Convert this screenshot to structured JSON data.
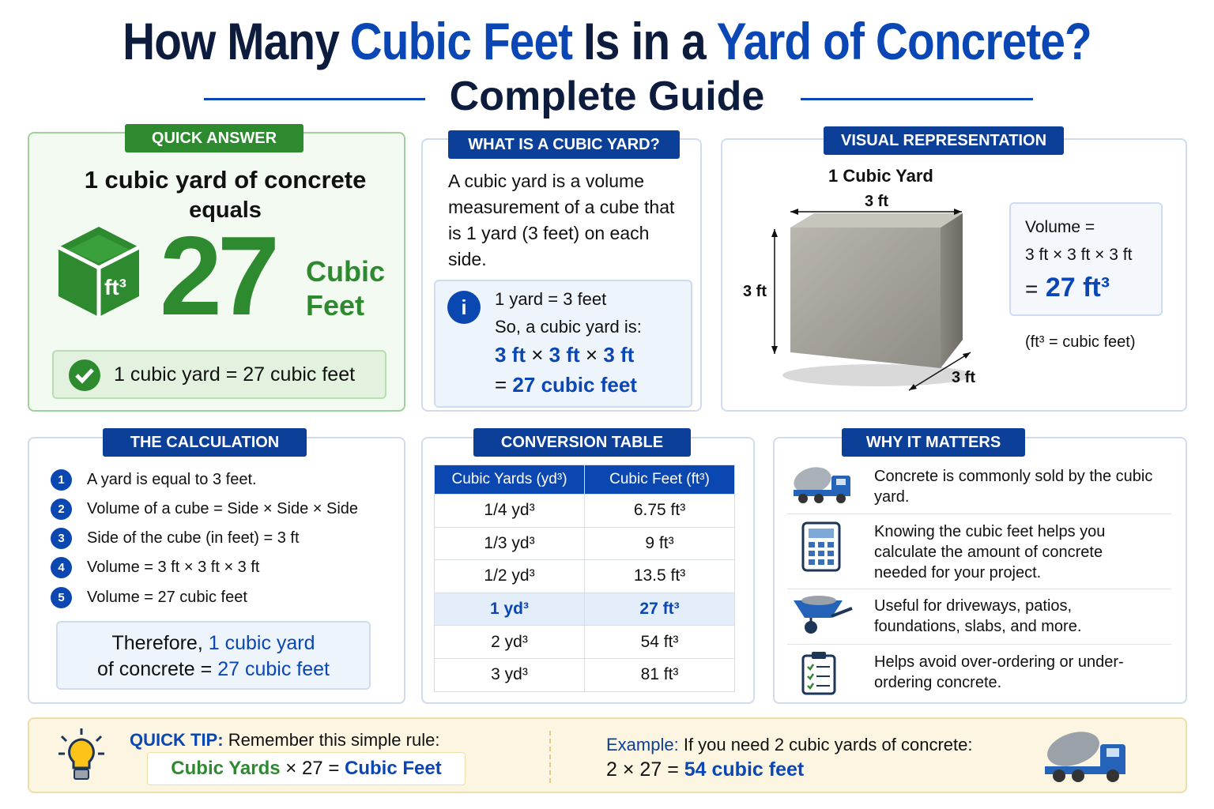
{
  "header": {
    "title_parts": [
      "How Many",
      "Cubic Feet",
      "Is in a",
      "Yard of Concrete?"
    ],
    "subtitle": "Complete Guide"
  },
  "quick_answer": {
    "label": "QUICK ANSWER",
    "line1": "1 cubic yard of concrete",
    "line2": "equals",
    "icon_text": "ft³",
    "number": "27",
    "unit_lines": [
      "Cubic",
      "Feet"
    ],
    "check_text": "1 cubic yard = 27 cubic feet"
  },
  "what_is": {
    "label": "WHAT IS A CUBIC YARD?",
    "description": "A cubic yard is a volume measurement of a cube that is 1 yard (3 feet) on each side.",
    "info_icon": "i",
    "info_lines": [
      "1 yard = 3 feet",
      "So, a cubic yard is:"
    ],
    "formula": [
      "3 ft",
      "×",
      "3 ft",
      "×",
      "3 ft"
    ],
    "result": [
      "=",
      "27 cubic feet"
    ]
  },
  "visual": {
    "label": "VISUAL REPRESENTATION",
    "cube_title": "1 Cubic Yard",
    "dim_top": "3 ft",
    "dim_left": "3 ft",
    "dim_bottom": "3 ft",
    "volume_label": "Volume =",
    "volume_formula": "3 ft × 3 ft × 3 ft",
    "volume_equals": "=",
    "volume_result": "27 ft³",
    "note": "(ft³ = cubic feet)"
  },
  "calculation": {
    "label": "THE CALCULATION",
    "steps": [
      {
        "number": "1",
        "text": "A yard is equal to 3 feet."
      },
      {
        "number": "2",
        "text": "Volume of a cube = Side × Side × Side"
      },
      {
        "number": "3",
        "text": "Side of the cube (in feet) = 3 ft"
      },
      {
        "number": "4",
        "text": "Volume = 3 ft × 3 ft × 3 ft"
      },
      {
        "number": "5",
        "text": "Volume = 27 cubic feet"
      }
    ],
    "conclusion": [
      [
        "Therefore,",
        "1 cubic yard"
      ],
      [
        "of concrete =",
        "27 cubic feet"
      ]
    ]
  },
  "table": {
    "label": "CONVERSION TABLE",
    "headers": [
      "Cubic Yards (yd³)",
      "Cubic Feet (ft³)"
    ],
    "rows": [
      [
        "1/4 yd³",
        "6.75 ft³"
      ],
      [
        "1/3 yd³",
        "9 ft³"
      ],
      [
        "1/2 yd³",
        "13.5 ft³"
      ],
      [
        "1 yd³",
        "27 ft³"
      ],
      [
        "2 yd³",
        "54 ft³"
      ],
      [
        "3 yd³",
        "81 ft³"
      ]
    ]
  },
  "why": {
    "label": "WHY IT MATTERS",
    "items": [
      "Concrete is commonly sold by the cubic yard.",
      "Knowing the cubic feet helps you calculate the amount of concrete needed for your project.",
      "Useful for driveways, patios, foundations, slabs, and more.",
      "Helps avoid over-ordering or under-ordering concrete."
    ]
  },
  "tip": {
    "label": "QUICK TIP:",
    "text": "Remember this simple rule:",
    "rule": [
      "Cubic Yards",
      "×",
      "27",
      "=",
      "Cubic Feet"
    ],
    "example_label": "Example:",
    "example_text": "If you need 2 cubic yards of concrete:",
    "example_calc": [
      "2",
      "×",
      "27",
      "=",
      "54 cubic feet"
    ]
  }
}
